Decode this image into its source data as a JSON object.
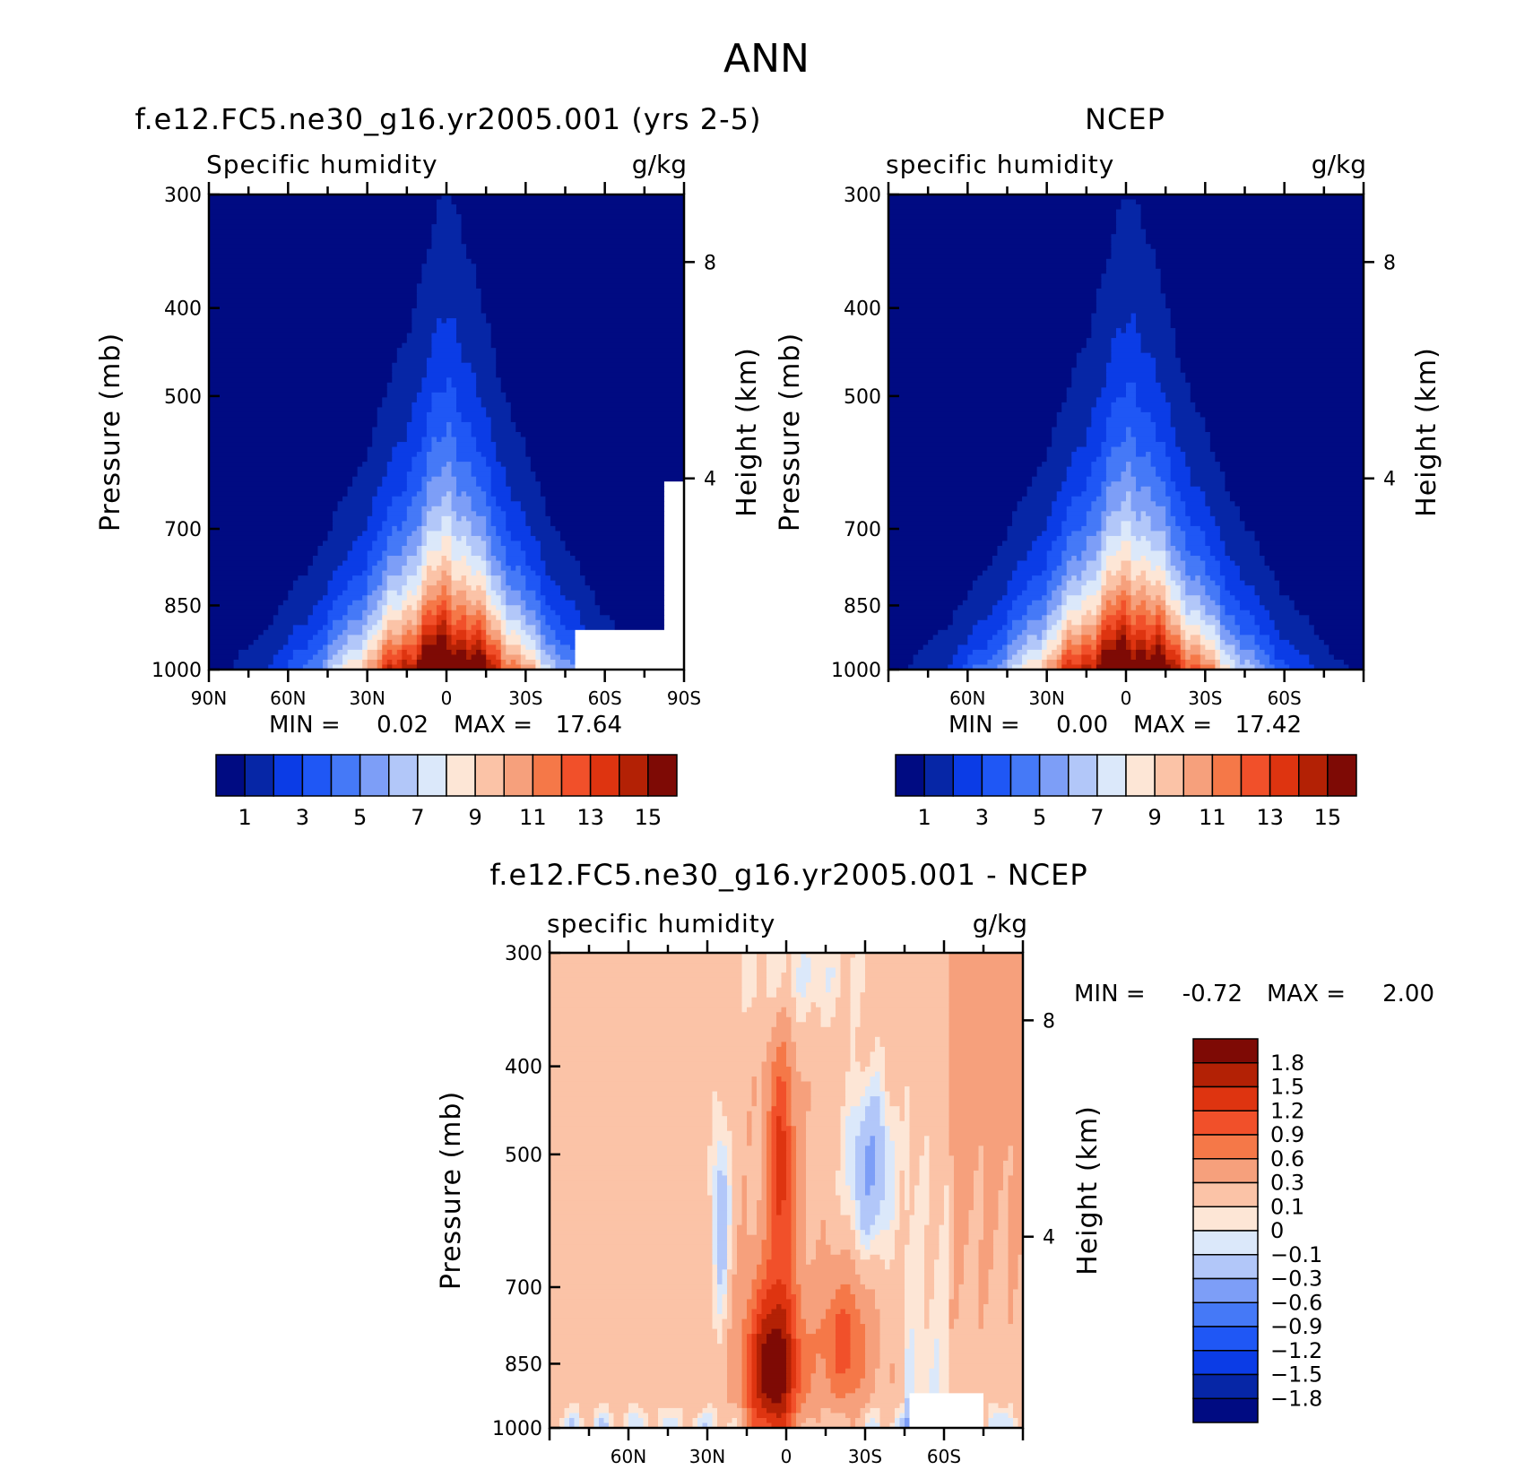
{
  "page_title": "ANN",
  "colors": {
    "seq": [
      "#000b82",
      "#0626a6",
      "#0b3ce6",
      "#1f57f5",
      "#4579f7",
      "#7d9ef7",
      "#b2c7f9",
      "#dbe8fa",
      "#fde6d6",
      "#fbc3a7",
      "#f6a07c",
      "#f57848",
      "#f1502a",
      "#de3410",
      "#b32105",
      "#7e0a05"
    ],
    "div": [
      "#000b82",
      "#0626a6",
      "#0b3ce6",
      "#1f57f5",
      "#4579f7",
      "#7d9ef7",
      "#b2c7f9",
      "#dbe8fa",
      "#fde6d6",
      "#fbc3a7",
      "#f6a07c",
      "#f57848",
      "#f1502a",
      "#de3410",
      "#b32105",
      "#7e0a05"
    ]
  },
  "chart_data": [
    {
      "type": "heatmap",
      "title": "f.e12.FC5.ne30_g16.yr2005.001 (yrs 2-5)",
      "left_string": "Specific humidity",
      "right_string": "g/kg",
      "ylabel": "Pressure (mb)",
      "ylabel_right": "Height (km)",
      "yticks": [
        "300",
        "400",
        "500",
        "700",
        "850",
        "1000"
      ],
      "yticks_right": [
        "8",
        "4"
      ],
      "xticks": [
        "90N",
        "60N",
        "30N",
        "0",
        "30S",
        "60S",
        "90S"
      ],
      "min_label": "MIN =",
      "min_value": "0.02",
      "max_label": "MAX =",
      "max_value": "17.64",
      "colorbar_labels": [
        "1",
        "3",
        "5",
        "7",
        "9",
        "11",
        "13",
        "15"
      ],
      "field": {
        "center_lat": -1,
        "max": 17.64,
        "half_width_deg": 32,
        "asym": 1.1
      }
    },
    {
      "type": "heatmap",
      "title": "NCEP",
      "left_string": "specific humidity",
      "right_string": "g/kg",
      "ylabel": "Pressure (mb)",
      "ylabel_right": "Height (km)",
      "yticks": [
        "300",
        "400",
        "500",
        "700",
        "850",
        "1000"
      ],
      "yticks_right": [
        "8",
        "4"
      ],
      "xticks": [
        "60N",
        "30N",
        "0",
        "30S",
        "60S"
      ],
      "min_label": "MIN =",
      "min_value": "0.00",
      "max_label": "MAX =",
      "max_value": "17.42",
      "colorbar_labels": [
        "1",
        "3",
        "5",
        "7",
        "9",
        "11",
        "13",
        "15"
      ],
      "field": {
        "center_lat": -2,
        "max": 17.42,
        "half_width_deg": 33,
        "asym": 1.05
      }
    },
    {
      "type": "heatmap",
      "title": "f.e12.FC5.ne30_g16.yr2005.001 - NCEP",
      "left_string": "specific humidity",
      "right_string": "g/kg",
      "ylabel": "Pressure (mb)",
      "ylabel_right": "Height (km)",
      "yticks": [
        "300",
        "400",
        "500",
        "700",
        "850",
        "1000"
      ],
      "yticks_right": [
        "8",
        "4"
      ],
      "xticks": [
        "60N",
        "30N",
        "0",
        "30S",
        "60S"
      ],
      "min_label": "MIN =",
      "min_value": "-0.72",
      "max_label": "MAX =",
      "max_value": "2.00",
      "colorbar_labels": [
        "1.8",
        "1.5",
        "1.2",
        "0.9",
        "0.6",
        "0.3",
        "0.1",
        "0",
        "-0.1",
        "-0.3",
        "-0.6",
        "-0.9",
        "-1.2",
        "-1.5",
        "-1.8"
      ],
      "levels": [
        -1.8,
        -1.5,
        -1.2,
        -0.9,
        -0.6,
        -0.3,
        -0.1,
        0,
        0.1,
        0.3,
        0.6,
        0.9,
        1.2,
        1.5,
        1.8
      ]
    }
  ]
}
